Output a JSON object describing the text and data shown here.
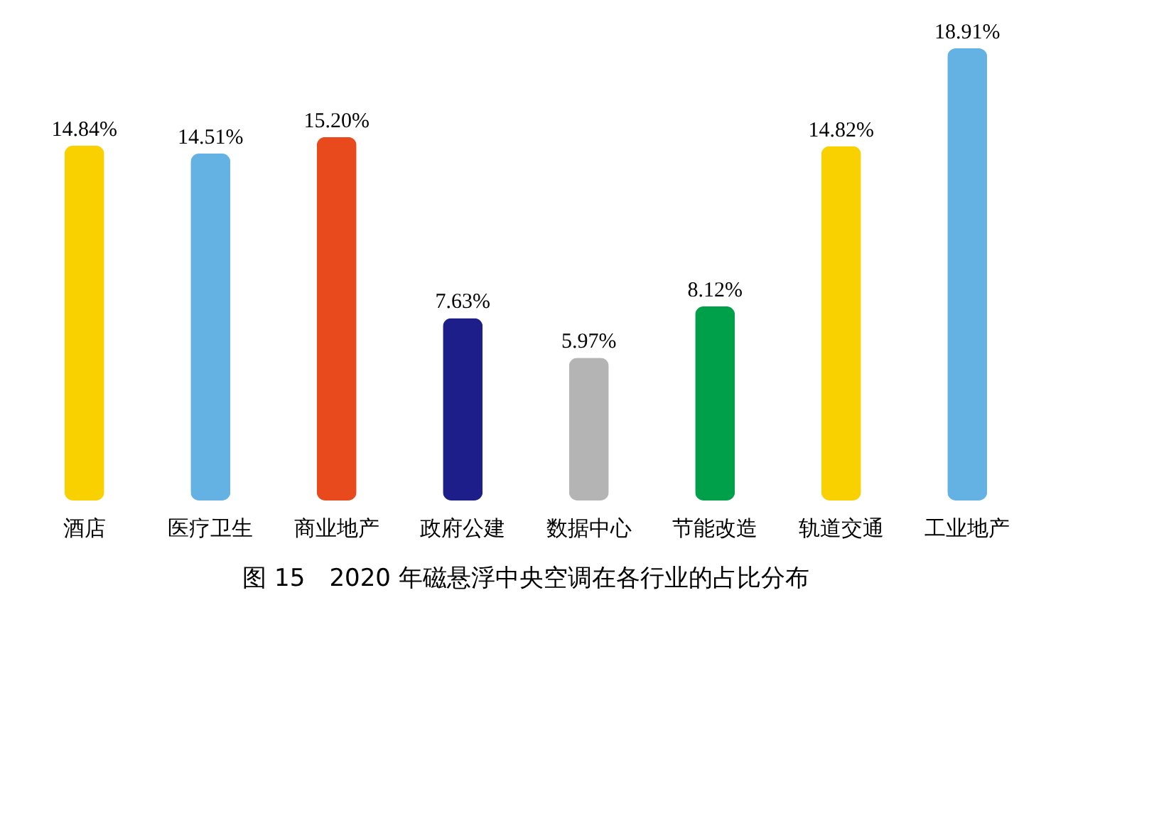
{
  "chart_data": {
    "type": "bar",
    "title": "图 15　2020 年磁悬浮中央空调在各行业的占比分布",
    "categories": [
      "酒店",
      "医疗卫生",
      "商业地产",
      "政府公建",
      "数据中心",
      "节能改造",
      "轨道交通",
      "工业地产"
    ],
    "values": [
      14.84,
      14.51,
      15.2,
      7.63,
      5.97,
      8.12,
      14.82,
      18.91
    ],
    "value_labels": [
      "14.84%",
      "14.51%",
      "15.20%",
      "7.63%",
      "5.97%",
      "8.12%",
      "14.82%",
      "18.91%"
    ],
    "colors": [
      "#f9d100",
      "#64b1e4",
      "#e84a1e",
      "#1d1e8a",
      "#b4b4b4",
      "#00a04a",
      "#f9d100",
      "#64b1e4"
    ],
    "grid": false
  }
}
